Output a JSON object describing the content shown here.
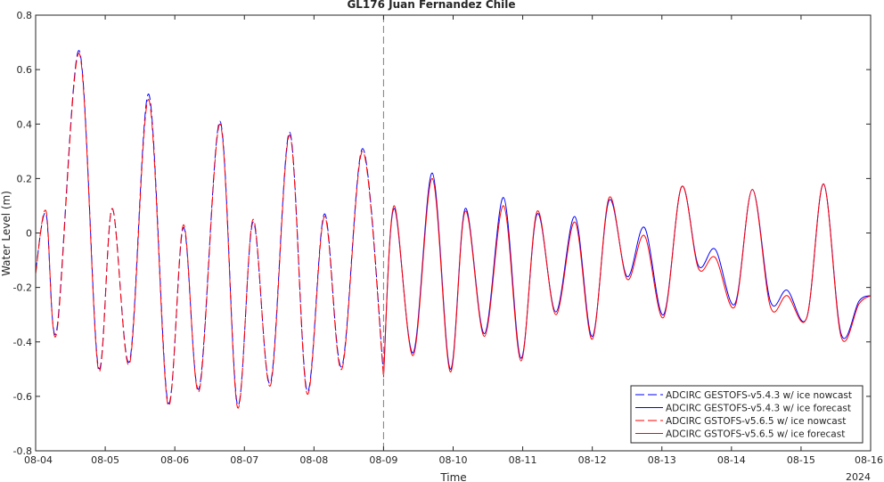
{
  "chart_data": {
    "type": "line",
    "title": "GL176 Juan Fernandez Chile",
    "xlabel": "Time",
    "ylabel": "Water Level (m)",
    "year_label": "2024",
    "xlim": [
      "2024-08-04",
      "2024-08-16"
    ],
    "ylim": [
      -0.8,
      0.8
    ],
    "yticks": [
      -0.8,
      -0.6,
      -0.4,
      -0.2,
      0,
      0.2,
      0.4,
      0.6,
      0.8
    ],
    "ytick_labels": [
      "-0.8",
      "-0.6",
      "-0.4",
      "-0.2",
      "0",
      "0.2",
      "0.4",
      "0.6",
      "0.8"
    ],
    "xticks": [
      "2024-08-04",
      "2024-08-05",
      "2024-08-06",
      "2024-08-07",
      "2024-08-08",
      "2024-08-09",
      "2024-08-10",
      "2024-08-11",
      "2024-08-12",
      "2024-08-13",
      "2024-08-14",
      "2024-08-15",
      "2024-08-16"
    ],
    "xtick_labels": [
      "08-04",
      "08-05",
      "08-06",
      "08-07",
      "08-08",
      "08-09",
      "08-10",
      "08-11",
      "08-12",
      "08-13",
      "08-14",
      "08-15",
      "08-16"
    ],
    "forecast_start": "2024-08-09",
    "legend_position": "bottom-right",
    "grid": false,
    "colors": {
      "blue": "#0000ff",
      "red": "#ff0000",
      "divider": "#808080",
      "axis": "#262626"
    },
    "series": [
      {
        "name": "ADCIRC GESTOFS-v5.4.3 w/ ice nowcast",
        "color": "#0000ff",
        "dash": true,
        "x": [
          "2024-08-04T00:00",
          "2024-08-04T03:36",
          "2024-08-04T07:12",
          "2024-08-04T15:00",
          "2024-08-04T21:36",
          "2024-08-05T02:24",
          "2024-08-05T08:24",
          "2024-08-05T15:00",
          "2024-08-05T21:36",
          "2024-08-06T03:00",
          "2024-08-06T08:24",
          "2024-08-06T15:36",
          "2024-08-06T21:36",
          "2024-08-07T03:00",
          "2024-08-07T09:00",
          "2024-08-07T15:36",
          "2024-08-07T21:36",
          "2024-08-08T03:36",
          "2024-08-08T09:36",
          "2024-08-08T16:48",
          "2024-08-09T00:00"
        ],
        "y": [
          -0.14,
          0.07,
          -0.36,
          0.67,
          -0.49,
          0.09,
          -0.47,
          0.51,
          -0.62,
          0.02,
          -0.57,
          0.41,
          -0.63,
          0.04,
          -0.55,
          0.37,
          -0.58,
          0.07,
          -0.49,
          0.31,
          -0.52
        ]
      },
      {
        "name": "ADCIRC GESTOFS-v5.4.3 w/ ice forecast",
        "color": "#0000ff",
        "dash": false,
        "x": [
          "2024-08-09T00:00",
          "2024-08-09T03:36",
          "2024-08-09T10:12",
          "2024-08-09T16:48",
          "2024-08-09T23:00",
          "2024-08-10T04:12",
          "2024-08-10T10:48",
          "2024-08-10T17:24",
          "2024-08-10T23:24",
          "2024-08-11T05:00",
          "2024-08-11T11:24",
          "2024-08-11T18:00",
          "2024-08-12T00:00",
          "2024-08-12T05:48",
          "2024-08-12T12:00",
          "2024-08-12T18:00",
          "2024-08-13T00:36",
          "2024-08-13T06:48",
          "2024-08-13T12:36",
          "2024-08-13T18:24",
          "2024-08-14T01:12",
          "2024-08-14T07:12",
          "2024-08-14T13:24",
          "2024-08-14T19:12",
          "2024-08-15T02:00",
          "2024-08-15T07:48",
          "2024-08-15T13:48",
          "2024-08-15T20:00",
          "2024-08-16T00:00"
        ],
        "y": [
          -0.52,
          0.09,
          -0.44,
          0.22,
          -0.5,
          0.09,
          -0.37,
          0.13,
          -0.46,
          0.07,
          -0.29,
          0.06,
          -0.38,
          0.12,
          -0.16,
          0.02,
          -0.3,
          0.17,
          -0.12,
          -0.06,
          -0.26,
          0.16,
          -0.25,
          -0.21,
          -0.31,
          0.18,
          -0.37,
          -0.25,
          -0.23
        ]
      },
      {
        "name": "ADCIRC GSTOFS-v5.6.5 w/ ice nowcast",
        "color": "#ff0000",
        "dash": true,
        "x": [
          "2024-08-04T00:00",
          "2024-08-04T03:36",
          "2024-08-04T07:12",
          "2024-08-04T15:00",
          "2024-08-04T21:36",
          "2024-08-05T02:24",
          "2024-08-05T08:24",
          "2024-08-05T15:00",
          "2024-08-05T21:36",
          "2024-08-06T03:00",
          "2024-08-06T08:24",
          "2024-08-06T15:36",
          "2024-08-06T21:36",
          "2024-08-07T03:00",
          "2024-08-07T09:00",
          "2024-08-07T15:36",
          "2024-08-07T21:36",
          "2024-08-08T03:36",
          "2024-08-08T09:36",
          "2024-08-08T16:48",
          "2024-08-09T00:00"
        ],
        "y": [
          -0.15,
          0.08,
          -0.37,
          0.66,
          -0.5,
          0.09,
          -0.48,
          0.49,
          -0.63,
          0.03,
          -0.58,
          0.4,
          -0.64,
          0.05,
          -0.56,
          0.36,
          -0.59,
          0.06,
          -0.5,
          0.3,
          -0.53
        ]
      },
      {
        "name": "ADCIRC GSTOFS-v5.6.5 w/ ice forecast",
        "color": "#ff0000",
        "dash": false,
        "x": [
          "2024-08-09T00:00",
          "2024-08-09T03:36",
          "2024-08-09T10:12",
          "2024-08-09T16:48",
          "2024-08-09T23:00",
          "2024-08-10T04:12",
          "2024-08-10T10:48",
          "2024-08-10T17:24",
          "2024-08-10T23:24",
          "2024-08-11T05:00",
          "2024-08-11T11:24",
          "2024-08-11T18:00",
          "2024-08-12T00:00",
          "2024-08-12T05:48",
          "2024-08-12T12:00",
          "2024-08-12T18:00",
          "2024-08-13T00:36",
          "2024-08-13T06:48",
          "2024-08-13T12:36",
          "2024-08-13T18:24",
          "2024-08-14T01:12",
          "2024-08-14T07:12",
          "2024-08-14T13:24",
          "2024-08-14T19:12",
          "2024-08-15T02:00",
          "2024-08-15T07:48",
          "2024-08-15T13:48",
          "2024-08-15T20:00",
          "2024-08-16T00:00"
        ],
        "y": [
          -0.53,
          0.1,
          -0.45,
          0.2,
          -0.51,
          0.08,
          -0.38,
          0.1,
          -0.47,
          0.08,
          -0.3,
          0.04,
          -0.39,
          0.13,
          -0.17,
          -0.01,
          -0.31,
          0.17,
          -0.13,
          -0.09,
          -0.27,
          0.16,
          -0.27,
          -0.23,
          -0.31,
          0.18,
          -0.38,
          -0.26,
          -0.23
        ]
      }
    ]
  }
}
